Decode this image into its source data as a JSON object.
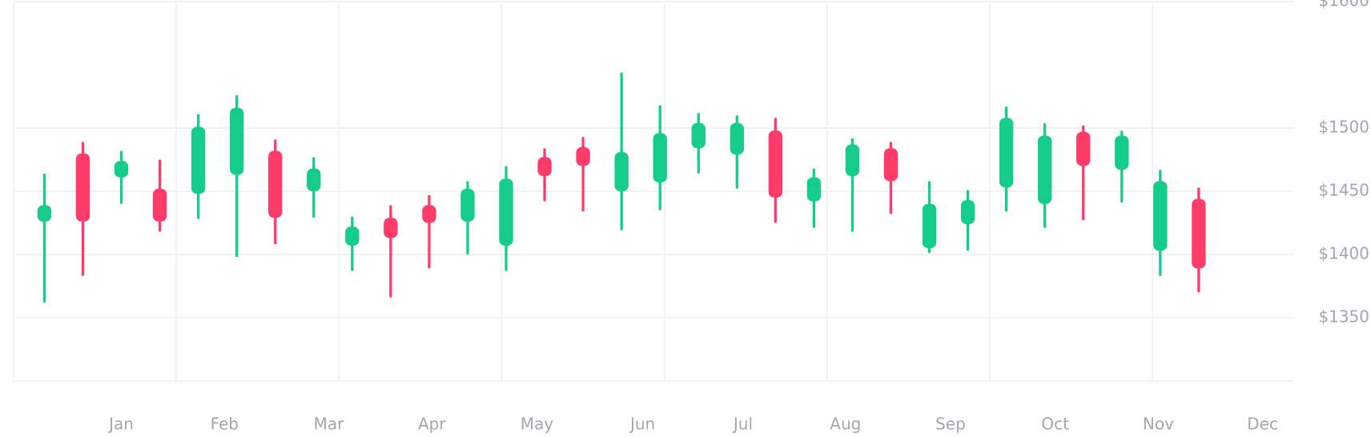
{
  "chart_data": {
    "type": "candlestick",
    "categories": [
      null,
      null,
      null,
      null,
      null,
      null,
      null,
      null,
      null,
      null,
      null,
      null,
      null,
      null,
      null,
      null,
      null,
      null,
      null,
      null,
      null,
      null,
      null,
      null,
      null,
      null,
      null,
      null,
      null,
      null,
      null
    ],
    "open": [
      1426,
      1480,
      1461,
      1452,
      1448,
      1463,
      1482,
      1450,
      1407,
      1429,
      1439,
      1426,
      1407,
      1477,
      1485,
      1450,
      1457,
      1484,
      1479,
      1498,
      1442,
      1462,
      1484,
      1405,
      1424,
      1453,
      1440,
      1497,
      1467,
      1403,
      1444
    ],
    "high": [
      1463,
      1488,
      1481,
      1474,
      1510,
      1525,
      1490,
      1476,
      1429,
      1438,
      1446,
      1457,
      1469,
      1483,
      1492,
      1543,
      1517,
      1511,
      1509,
      1507,
      1467,
      1491,
      1488,
      1457,
      1450,
      1516,
      1503,
      1501,
      1497,
      1466,
      1452
    ],
    "low": [
      1363,
      1384,
      1441,
      1419,
      1429,
      1399,
      1409,
      1430,
      1388,
      1367,
      1390,
      1401,
      1388,
      1443,
      1435,
      1420,
      1436,
      1465,
      1453,
      1426,
      1422,
      1419,
      1433,
      1402,
      1404,
      1435,
      1422,
      1428,
      1442,
      1384,
      1371
    ],
    "close": [
      1439,
      1426,
      1474,
      1426,
      1501,
      1516,
      1429,
      1468,
      1422,
      1413,
      1425,
      1452,
      1460,
      1462,
      1470,
      1481,
      1496,
      1504,
      1504,
      1445,
      1461,
      1487,
      1458,
      1440,
      1443,
      1508,
      1494,
      1470,
      1494,
      1458,
      1389
    ],
    "up_color": "#16cc8a",
    "down_color": "#ff3b69",
    "xlim": [
      -0.8,
      32.5
    ],
    "xticks": [
      {
        "value": 2,
        "label": "Jan"
      },
      {
        "value": 4.68,
        "label": "Feb"
      },
      {
        "value": 7.39,
        "label": "Mar"
      },
      {
        "value": 10.07,
        "label": "Apr"
      },
      {
        "value": 12.8,
        "label": "May"
      },
      {
        "value": 15.55,
        "label": "Jun"
      },
      {
        "value": 18.16,
        "label": "Jul"
      },
      {
        "value": 20.82,
        "label": "Aug"
      },
      {
        "value": 23.55,
        "label": "Sep"
      },
      {
        "value": 26.27,
        "label": "Oct"
      },
      {
        "value": 28.95,
        "label": "Nov"
      },
      {
        "value": 31.66,
        "label": "Dec"
      }
    ],
    "ylim": [
      1300,
      1600
    ],
    "yticks": [
      {
        "value": 1600,
        "label": "$1600"
      },
      {
        "value": 1500,
        "label": "$1500"
      },
      {
        "value": 1450,
        "label": "$1450"
      },
      {
        "value": 1400,
        "label": "$1400"
      },
      {
        "value": 1350,
        "label": "$1350"
      }
    ],
    "grid": true
  }
}
